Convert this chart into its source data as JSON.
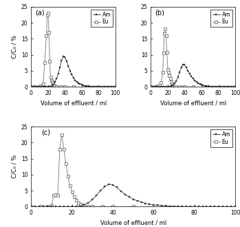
{
  "panel_labels": [
    "(a)",
    "(b)",
    "(c)"
  ],
  "xlabel": "Volume of effluent / ml",
  "ylabel": "C/C₀ / %",
  "xlim": [
    0,
    100
  ],
  "ylim": [
    0,
    25
  ],
  "yticks": [
    0,
    5,
    10,
    15,
    20,
    25
  ],
  "xticks": [
    0,
    20,
    40,
    60,
    80,
    100
  ],
  "legend_labels": [
    "Am",
    "Eu"
  ],
  "am_color": "#333333",
  "eu_color": "#888888",
  "a_am_x": [
    0,
    2,
    4,
    6,
    8,
    10,
    12,
    14,
    16,
    18,
    20,
    22,
    24,
    26,
    28,
    30,
    32,
    34,
    36,
    38,
    40,
    42,
    44,
    46,
    48,
    50,
    52,
    54,
    56,
    58,
    60,
    62,
    64,
    66,
    68,
    70,
    72,
    74,
    76,
    78,
    80,
    82,
    84,
    86,
    88,
    90,
    92,
    94,
    96,
    98,
    100
  ],
  "a_am_y": [
    0,
    0,
    0,
    0,
    0,
    0,
    0,
    0,
    0,
    0,
    0.05,
    0.1,
    0.3,
    0.7,
    1.5,
    2.5,
    4.0,
    6.0,
    8.2,
    9.5,
    9.3,
    8.0,
    6.5,
    5.0,
    3.8,
    2.8,
    2.0,
    1.5,
    1.1,
    0.8,
    0.6,
    0.4,
    0.3,
    0.2,
    0.15,
    0.1,
    0.08,
    0.06,
    0.04,
    0.02,
    0.01,
    0,
    0,
    0,
    0,
    0,
    0,
    0,
    0,
    0,
    0
  ],
  "a_eu_x": [
    0,
    5,
    10,
    14,
    16,
    18,
    19,
    20,
    21,
    22,
    23,
    24,
    25,
    26,
    27,
    28,
    30,
    35,
    40,
    50
  ],
  "a_eu_y": [
    0,
    0,
    0.2,
    0.8,
    7.5,
    16.0,
    22.5,
    23.0,
    17.0,
    8.0,
    3.0,
    2.0,
    1.5,
    1.0,
    0.5,
    0.3,
    0.1,
    0.02,
    0,
    0
  ],
  "b_am_x": [
    0,
    2,
    4,
    6,
    8,
    10,
    12,
    14,
    16,
    18,
    20,
    22,
    24,
    26,
    28,
    30,
    32,
    34,
    36,
    38,
    40,
    42,
    44,
    46,
    48,
    50,
    52,
    54,
    56,
    58,
    60,
    62,
    64,
    66,
    68,
    70,
    72,
    74,
    76,
    78,
    80,
    82,
    84,
    86,
    88,
    90,
    92,
    94,
    96,
    98,
    100
  ],
  "b_am_y": [
    0,
    0,
    0,
    0,
    0,
    0,
    0,
    0,
    0,
    0,
    0,
    0.05,
    0.15,
    0.4,
    1.0,
    1.8,
    3.0,
    4.5,
    6.0,
    7.0,
    6.8,
    6.0,
    5.0,
    4.0,
    3.2,
    2.5,
    2.0,
    1.5,
    1.1,
    0.8,
    0.6,
    0.4,
    0.3,
    0.2,
    0.15,
    0.1,
    0.08,
    0.05,
    0.03,
    0.02,
    0.01,
    0,
    0,
    0,
    0,
    0,
    0,
    0,
    0,
    0,
    0
  ],
  "b_eu_x": [
    0,
    5,
    8,
    10,
    12,
    14,
    15,
    16,
    17,
    18,
    19,
    20,
    21,
    22,
    23,
    24,
    25,
    26,
    28,
    30,
    35,
    40,
    50
  ],
  "b_eu_y": [
    0,
    0,
    0.2,
    0.5,
    1.2,
    4.5,
    10.5,
    16.5,
    18.0,
    16.0,
    10.8,
    5.5,
    4.5,
    3.5,
    2.5,
    1.5,
    0.8,
    0.4,
    0.1,
    0.05,
    0.02,
    0,
    0
  ],
  "c_am_x": [
    0,
    2,
    4,
    6,
    8,
    10,
    12,
    14,
    16,
    18,
    20,
    22,
    24,
    26,
    28,
    30,
    32,
    34,
    36,
    38,
    40,
    42,
    44,
    46,
    48,
    50,
    52,
    54,
    56,
    58,
    60,
    62,
    64,
    66,
    68,
    70,
    72,
    74,
    76,
    78,
    80,
    82,
    84,
    86,
    88,
    90,
    92,
    94,
    96,
    98,
    100
  ],
  "c_am_y": [
    0,
    0,
    0,
    0,
    0,
    0,
    0,
    0,
    0,
    0,
    0,
    0.05,
    0.15,
    0.5,
    1.2,
    2.2,
    3.5,
    5.0,
    6.2,
    7.0,
    6.8,
    6.0,
    4.8,
    3.8,
    3.0,
    2.3,
    1.8,
    1.4,
    1.0,
    0.8,
    0.5,
    0.4,
    0.3,
    0.2,
    0.15,
    0.1,
    0.07,
    0.05,
    0.03,
    0.02,
    0.01,
    0,
    0,
    0,
    0,
    0,
    0,
    0,
    0,
    0,
    0
  ],
  "c_eu_x": [
    0,
    5,
    8,
    10,
    11,
    12,
    13,
    14,
    15,
    16,
    17,
    18,
    19,
    20,
    21,
    22,
    23,
    24,
    25,
    26,
    28,
    30,
    35,
    40,
    50
  ],
  "c_eu_y": [
    0,
    0,
    0.1,
    0.3,
    3.5,
    3.8,
    3.5,
    18.0,
    22.5,
    18.0,
    13.5,
    9.5,
    6.5,
    4.5,
    3.0,
    2.0,
    1.2,
    0.7,
    0.4,
    0.2,
    0.1,
    0.05,
    0.02,
    0,
    0
  ]
}
